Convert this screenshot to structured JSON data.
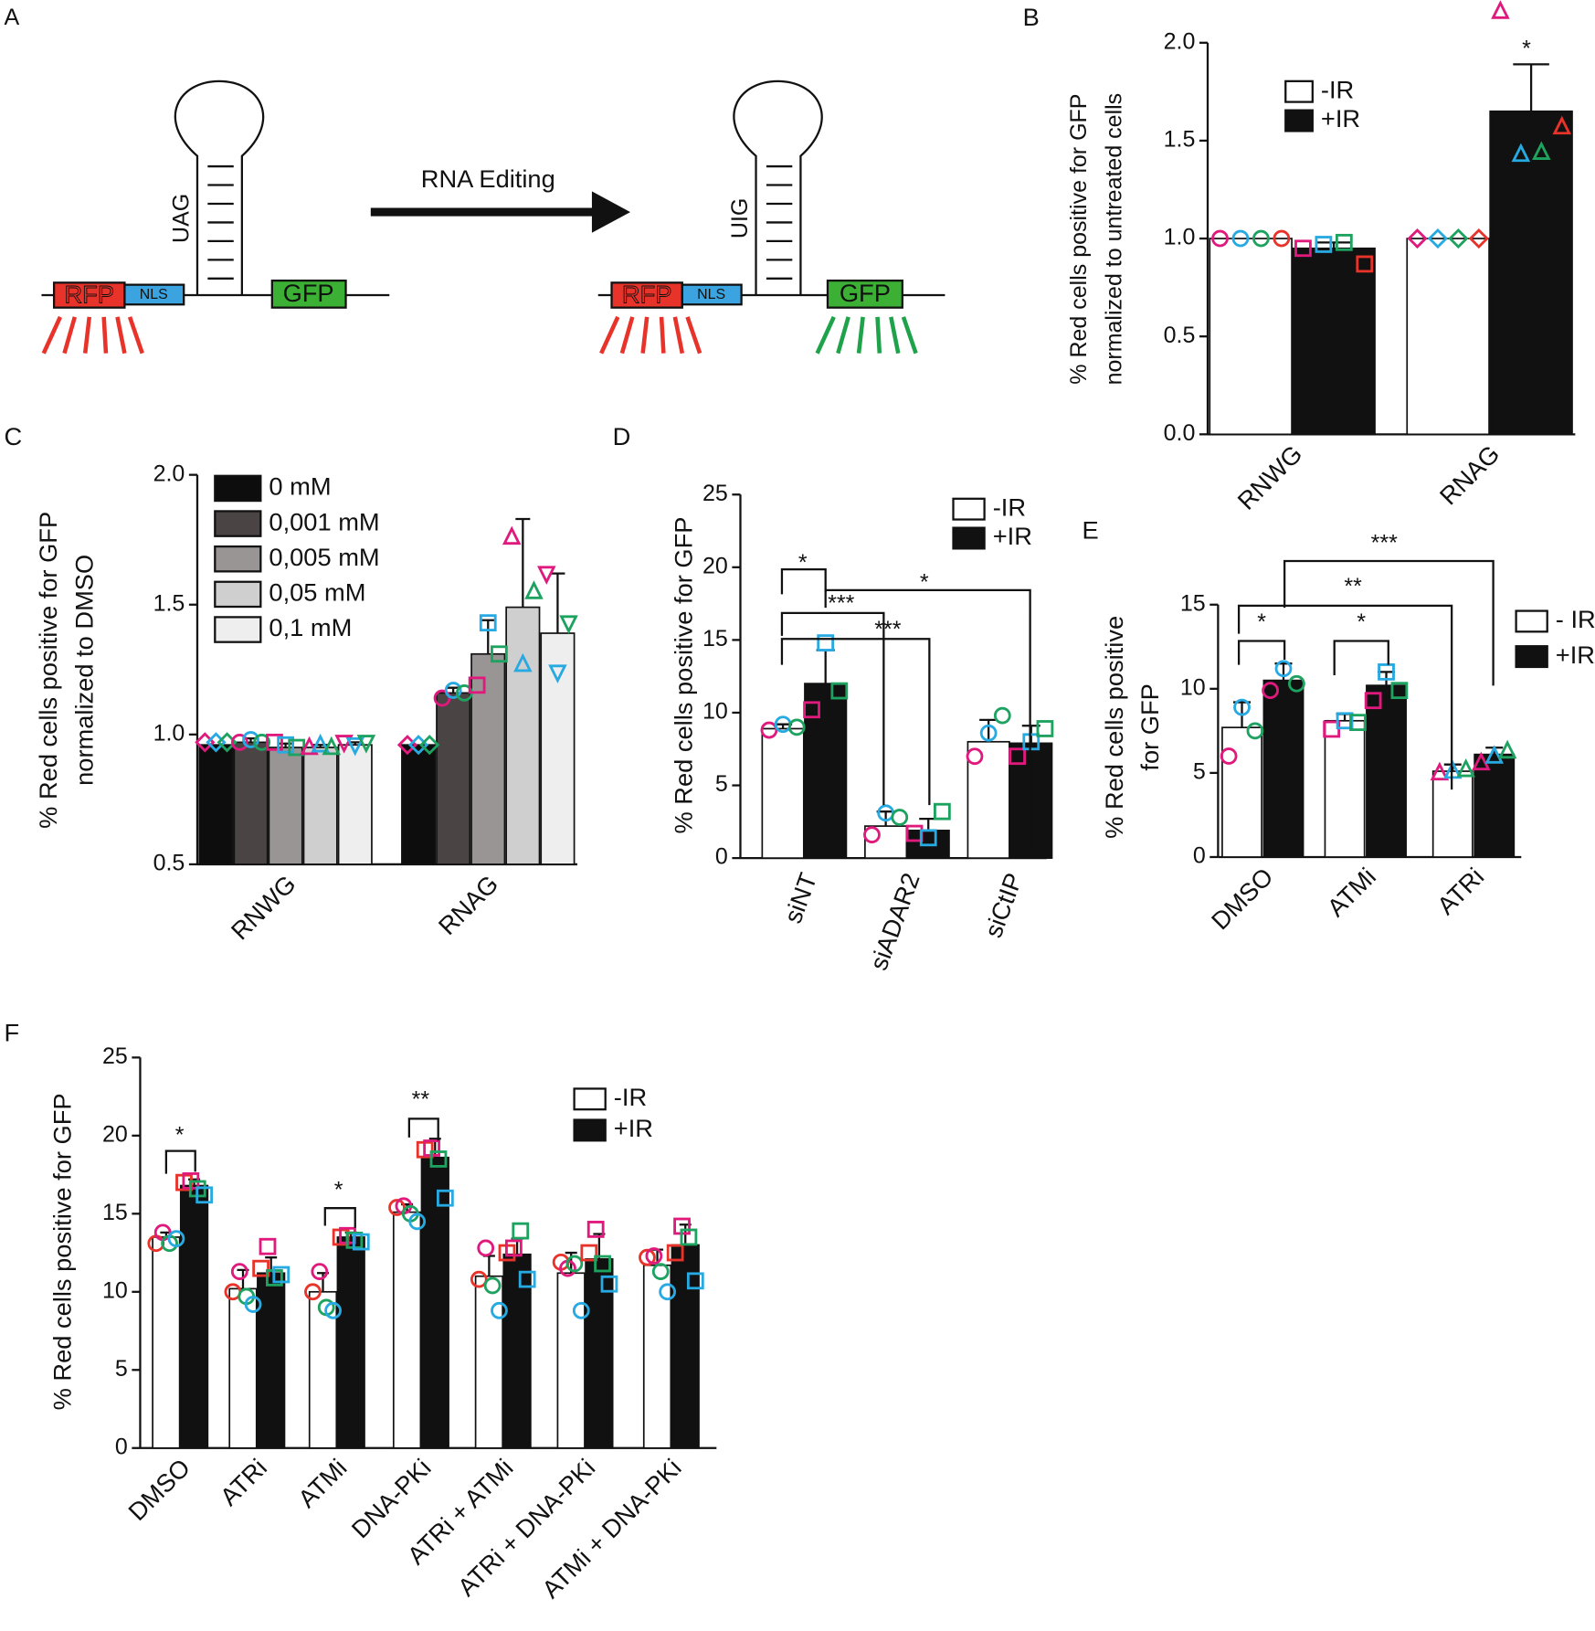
{
  "diagram": {
    "panel": "A",
    "left": {
      "rfp": "RFP",
      "nls": "NLS",
      "codon": "UAG",
      "gfp": "GFP"
    },
    "arrow_label": "RNA Editing",
    "right": {
      "rfp": "RFP",
      "nls": "NLS",
      "codon": "UIG",
      "gfp": "GFP"
    }
  },
  "chart_data": [
    {
      "panel": "B",
      "type": "bar",
      "ylabel": [
        "% Red cells positive for GFP",
        "normalized to untreated cells"
      ],
      "ylim": [
        0,
        2.0
      ],
      "yticks": [
        {
          "value": 0,
          "label": "0.0"
        },
        0.5,
        {
          "value": 1,
          "label": "1.0"
        },
        1.5,
        {
          "value": 2,
          "label": "2.0"
        }
      ],
      "categories": [
        "RNWG",
        "RNAG"
      ],
      "legend": true,
      "point_colors": [
        "#e0197d",
        "#27a9e1",
        "#1ea260",
        "#e8332a"
      ],
      "series": [
        {
          "name": "-IR",
          "color": "#ffffff",
          "values": [
            1.0,
            1.0
          ],
          "points": [
            [
              1.0,
              1.0,
              1.0,
              1.0
            ],
            [
              1.0,
              1.0,
              1.0,
              1.0
            ]
          ],
          "markers": [
            "circle",
            "diamond"
          ]
        },
        {
          "name": "+IR",
          "color": "#111111",
          "values": [
            0.95,
            1.65
          ],
          "errors": [
            0.03,
            0.24
          ],
          "points": [
            [
              0.95,
              0.97,
              0.98,
              0.87
            ],
            [
              2.16,
              1.43,
              1.44,
              1.57
            ]
          ],
          "markers": [
            "square",
            "triangle"
          ]
        }
      ],
      "annotations": [
        "*"
      ]
    },
    {
      "panel": "C",
      "type": "bar",
      "ylabel": [
        "% Red cells positive for GFP",
        "normalized to DMSO"
      ],
      "ylim": [
        0.5,
        2.0
      ],
      "yticks": [
        0.5,
        {
          "value": 1,
          "label": "1.0"
        },
        1.5,
        {
          "value": 2,
          "label": "2.0"
        }
      ],
      "categories": [
        "RNWG",
        "RNAG"
      ],
      "legend": true,
      "point_colors": [
        "#e0197d",
        "#27a9e1",
        "#1ea260"
      ],
      "series": [
        {
          "name": "0 mM",
          "color": "#0d0d0d",
          "values": [
            0.96,
            0.96
          ],
          "points": [
            [
              0.97,
              0.97,
              0.97
            ],
            [
              0.96,
              0.96,
              0.96
            ]
          ],
          "markers": [
            "diamond",
            "diamond"
          ]
        },
        {
          "name": "0,001 mM",
          "color": "#4a4444",
          "values": [
            0.97,
            1.16
          ],
          "errors": [
            0.015,
            0.02
          ],
          "points": [
            [
              0.97,
              0.98,
              0.97
            ],
            [
              1.14,
              1.17,
              1.16
            ]
          ],
          "markers": [
            "circle",
            "circle"
          ]
        },
        {
          "name": "0,005 mM",
          "color": "#9a9595",
          "values": [
            0.95,
            1.31
          ],
          "errors": [
            0.015,
            0.13
          ],
          "points": [
            [
              0.97,
              0.96,
              0.95
            ],
            [
              1.19,
              1.43,
              1.31
            ]
          ],
          "markers": [
            "square",
            "square"
          ]
        },
        {
          "name": "0,05 mM",
          "color": "#cfcfcf",
          "values": [
            0.95,
            1.49
          ],
          "errors": [
            0.01,
            0.34
          ],
          "points": [
            [
              0.95,
              0.96,
              0.95
            ],
            [
              1.76,
              1.27,
              1.55
            ]
          ],
          "markers": [
            "triangle",
            "triangle"
          ]
        },
        {
          "name": "0,1 mM",
          "color": "#eeeeee",
          "values": [
            0.96,
            1.39
          ],
          "errors": [
            0.01,
            0.23
          ],
          "points": [
            [
              0.97,
              0.96,
              0.97
            ],
            [
              1.62,
              1.24,
              1.43
            ]
          ],
          "markers": [
            "triangle-down",
            "triangle-down"
          ]
        }
      ]
    },
    {
      "panel": "D",
      "type": "bar",
      "ylabel": [
        "% Red cells positive for GFP"
      ],
      "ylim": [
        0,
        25
      ],
      "yticks": [
        0,
        5,
        10,
        15,
        20,
        25
      ],
      "categories": [
        "siNT",
        "siADAR2",
        "siCtIP"
      ],
      "legend": true,
      "point_colors": [
        "#e0197d",
        "#27a9e1",
        "#1ea260"
      ],
      "series": [
        {
          "name": "-IR",
          "color": "#ffffff",
          "values": [
            8.9,
            2.2,
            8.0
          ],
          "errors": [
            0.3,
            1.0,
            1.5
          ],
          "points": [
            [
              8.8,
              9.2,
              9.0
            ],
            [
              1.6,
              3.1,
              2.8
            ],
            [
              7.0,
              8.6,
              9.8
            ]
          ],
          "markers": [
            "circle",
            "circle",
            "circle"
          ]
        },
        {
          "name": "+IR",
          "color": "#111111",
          "values": [
            12.0,
            1.9,
            7.9
          ],
          "errors": [
            2.3,
            0.8,
            1.2
          ],
          "points": [
            [
              10.2,
              14.8,
              11.5
            ],
            [
              1.7,
              1.4,
              3.2
            ],
            [
              7.0,
              8.0,
              8.9
            ]
          ],
          "markers": [
            "square",
            "square",
            "square"
          ]
        }
      ],
      "annotations": [
        "*",
        "***",
        "***",
        "*"
      ]
    },
    {
      "panel": "E",
      "type": "bar",
      "ylabel": [
        "% Red cells positive",
        "for GFP"
      ],
      "ylim": [
        0,
        15
      ],
      "yticks": [
        0,
        5,
        10,
        15
      ],
      "categories": [
        "DMSO",
        "ATMi",
        "ATRi"
      ],
      "legend": true,
      "point_colors": [
        "#e0197d",
        "#27a9e1",
        "#1ea260"
      ],
      "series": [
        {
          "name": "- IR",
          "color": "#ffffff",
          "values": [
            7.7,
            8.1,
            5.1
          ],
          "errors": [
            1.5,
            0.4,
            0.4
          ],
          "points": [
            [
              6.0,
              8.9,
              7.5
            ],
            [
              7.6,
              8.1,
              8.0
            ],
            [
              5.0,
              5.1,
              5.2
            ]
          ],
          "markers": [
            "circle",
            "square",
            "triangle"
          ]
        },
        {
          "name": "+IR",
          "color": "#111111",
          "values": [
            10.5,
            10.2,
            6.1
          ],
          "errors": [
            1.0,
            0.8,
            0.4
          ],
          "points": [
            [
              9.9,
              11.2,
              10.3
            ],
            [
              9.3,
              11.0,
              9.9
            ],
            [
              5.6,
              6.0,
              6.3
            ]
          ],
          "markers": [
            "circle",
            "square",
            "triangle"
          ]
        }
      ],
      "annotations": [
        "***",
        "**",
        "*",
        "*"
      ]
    },
    {
      "panel": "F",
      "type": "bar",
      "ylabel": [
        "% Red cells positive  for GFP"
      ],
      "ylim": [
        0,
        25
      ],
      "yticks": [
        0,
        5,
        10,
        15,
        20,
        25
      ],
      "categories": [
        "DMSO",
        "ATRi",
        "ATMi",
        "DNA-PKi",
        "ATRi + ATMi",
        "ATRi + DNA-PKi",
        "ATMi + DNA-PKi"
      ],
      "legend": true,
      "point_colors": [
        "#e8332a",
        "#e0197d",
        "#1ea260",
        "#27a9e1"
      ],
      "series": [
        {
          "name": "-IR",
          "color": "#ffffff",
          "values": [
            13.5,
            10.2,
            10.0,
            15.1,
            11.0,
            11.2,
            11.7
          ],
          "errors": [
            0.3,
            1.2,
            1.2,
            0.5,
            1.3,
            1.3,
            1.0
          ],
          "points": [
            [
              13.1,
              13.8,
              13.1,
              13.4
            ],
            [
              10.0,
              11.3,
              9.7,
              9.2
            ],
            [
              10.0,
              11.3,
              9.0,
              8.8
            ],
            [
              15.4,
              15.5,
              15.0,
              14.5
            ],
            [
              10.8,
              12.8,
              10.4,
              8.8
            ],
            [
              11.9,
              11.5,
              11.8,
              8.8
            ],
            [
              12.2,
              12.3,
              11.3,
              10.0
            ]
          ],
          "markers": [
            "circle",
            "circle",
            "circle",
            "circle",
            "circle",
            "circle",
            "circle"
          ]
        },
        {
          "name": "+IR",
          "color": "#111111",
          "values": [
            16.8,
            11.2,
            13.5,
            18.6,
            12.4,
            12.1,
            13.0
          ],
          "errors": [
            0.4,
            1.0,
            0.3,
            1.2,
            1.0,
            1.6,
            1.3
          ],
          "points": [
            [
              17.0,
              17.1,
              16.6,
              16.2
            ],
            [
              11.5,
              12.9,
              10.9,
              11.1
            ],
            [
              13.5,
              13.6,
              13.3,
              13.2
            ],
            [
              19.1,
              19.2,
              18.5,
              16.0
            ],
            [
              12.5,
              12.8,
              13.9,
              10.8
            ],
            [
              12.5,
              14.0,
              11.8,
              10.5
            ],
            [
              12.5,
              14.2,
              13.5,
              10.7
            ]
          ],
          "markers": [
            "square",
            "square",
            "square",
            "square",
            "square",
            "square",
            "square"
          ]
        }
      ],
      "annotations": [
        "*",
        "*",
        "**"
      ]
    }
  ]
}
